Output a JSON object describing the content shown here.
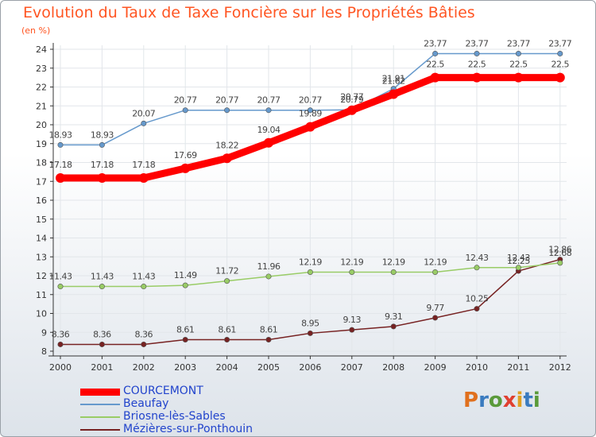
{
  "chart_data": {
    "type": "line",
    "title": "Evolution du Taux de Taxe Foncière sur les Propriétés Bâties",
    "ylabel": "(en %)",
    "x": [
      "2000",
      "2001",
      "2002",
      "2003",
      "2004",
      "2005",
      "2006",
      "2007",
      "2008",
      "2009",
      "2010",
      "2011",
      "2012"
    ],
    "ylim": [
      8,
      24
    ],
    "yticks": [
      "8",
      "9",
      "10",
      "11",
      "12",
      "13",
      "14",
      "15",
      "16",
      "17",
      "18",
      "19",
      "20",
      "21",
      "22",
      "23",
      "24"
    ],
    "series": [
      {
        "name": "COURCEMONT",
        "color": "#ff0000",
        "values": [
          17.18,
          17.18,
          17.18,
          17.69,
          18.22,
          19.04,
          19.89,
          20.77,
          21.62,
          22.5,
          22.5,
          22.5,
          22.5
        ],
        "labels": [
          "17.18",
          "17.18",
          "17.18",
          "17.69",
          "18.22",
          "19.04",
          "19.89",
          "20.77",
          "21.62",
          "22.5",
          "22.5",
          "22.5",
          "22.5"
        ]
      },
      {
        "name": "Beaufay",
        "color": "#6699cc",
        "values": [
          18.93,
          18.93,
          20.07,
          20.77,
          20.77,
          20.77,
          20.77,
          20.79,
          21.91,
          23.77,
          23.77,
          23.77,
          23.77
        ],
        "labels": [
          "18.93",
          "18.93",
          "20.07",
          "20.77",
          "20.77",
          "20.77",
          "20.77",
          "20.79",
          "21.91",
          "23.77",
          "23.77",
          "23.77",
          "23.77"
        ]
      },
      {
        "name": "Briosne-lès-Sables",
        "color": "#99cc66",
        "values": [
          11.43,
          11.43,
          11.43,
          11.49,
          11.72,
          11.96,
          12.19,
          12.19,
          12.19,
          12.19,
          12.43,
          12.43,
          12.68
        ],
        "labels": [
          "11.43",
          "11.43",
          "11.43",
          "11.49",
          "11.72",
          "11.96",
          "12.19",
          "12.19",
          "12.19",
          "12.19",
          "12.43",
          "12.43",
          "12.68"
        ]
      },
      {
        "name": "Mézières-sur-Ponthouin",
        "color": "#772222",
        "values": [
          8.36,
          8.36,
          8.36,
          8.61,
          8.61,
          8.61,
          8.95,
          9.13,
          9.31,
          9.77,
          10.25,
          12.25,
          12.86
        ],
        "labels": [
          "8.36",
          "8.36",
          "8.36",
          "8.61",
          "8.61",
          "8.61",
          "8.95",
          "9.13",
          "9.31",
          "9.77",
          "10.25",
          "12.25",
          "12.86"
        ]
      }
    ]
  },
  "logo": {
    "text": "Proxiti"
  }
}
